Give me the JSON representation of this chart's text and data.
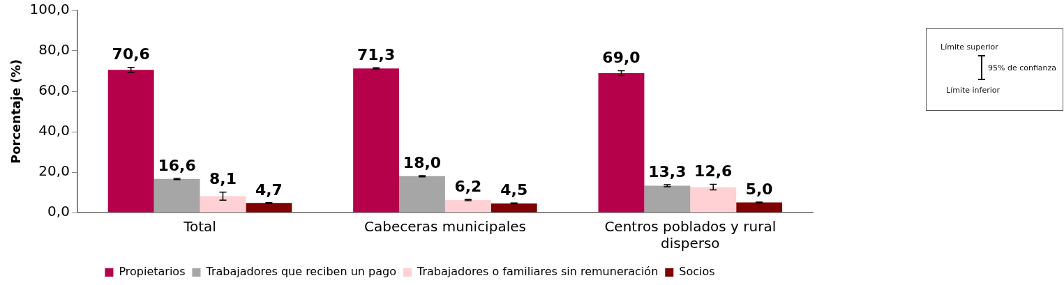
{
  "chart_data": {
    "type": "bar",
    "ylabel": "Porcentaje (%)",
    "categories": [
      "Total",
      "Cabeceras municipales",
      "Centros poblados y rural disperso"
    ],
    "series": [
      {
        "name": "Propietarios",
        "color": "#b5004a",
        "values": [
          70.6,
          71.3,
          69.0
        ],
        "value_labels": [
          "70,6",
          "71,3",
          "69,0"
        ],
        "errors": [
          1.2,
          0.3,
          1.2
        ]
      },
      {
        "name": "Trabajadores que reciben un pago",
        "color": "#a6a6a6",
        "values": [
          16.6,
          18.0,
          13.3
        ],
        "value_labels": [
          "16,6",
          "18,0",
          "13,3"
        ],
        "errors": [
          0.3,
          0.3,
          0.5
        ]
      },
      {
        "name": "Trabajadores o familiares sin remuneración",
        "color": "#ffd1d4",
        "values": [
          8.1,
          6.2,
          12.6
        ],
        "value_labels": [
          "8,1",
          "6,2",
          "12,6"
        ],
        "errors": [
          2.0,
          0.3,
          1.4
        ]
      },
      {
        "name": "Socios",
        "color": "#7f0000",
        "values": [
          4.7,
          4.5,
          5.0
        ],
        "value_labels": [
          "4,7",
          "4,5",
          "5,0"
        ],
        "errors": [
          0.2,
          0.2,
          0.2
        ]
      }
    ],
    "ylim": [
      0,
      100
    ],
    "yticks": [
      {
        "value": 0,
        "label": "0,0"
      },
      {
        "value": 20,
        "label": "20,0"
      },
      {
        "value": 40,
        "label": "40,0"
      },
      {
        "value": 60,
        "label": "60,0"
      },
      {
        "value": 80,
        "label": "80,0"
      },
      {
        "value": 100,
        "label": "100,0"
      }
    ],
    "grid": false,
    "legend": "bottom",
    "annotations": [
      "Límite superior",
      "95% de confianza",
      "Límite inferior"
    ]
  }
}
